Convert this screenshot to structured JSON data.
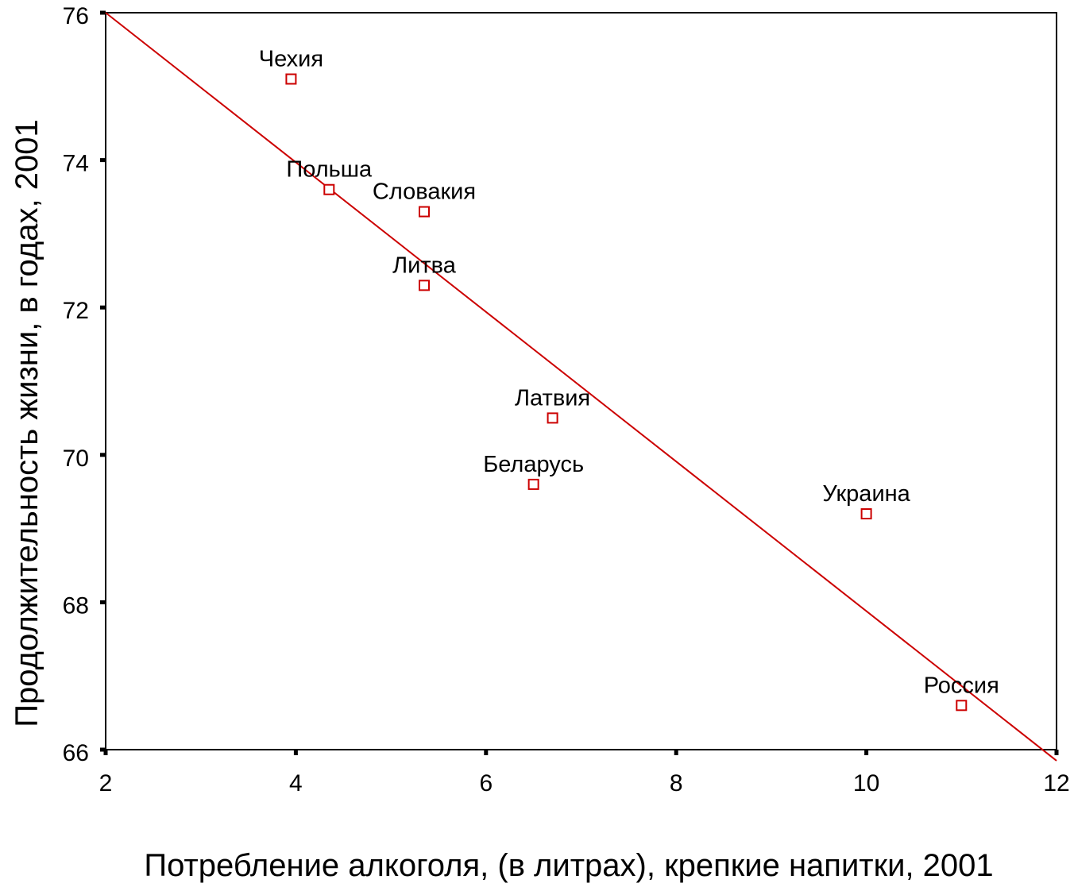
{
  "chart_data": {
    "type": "scatter",
    "title": "",
    "xlabel": "Потребление алкоголя, (в литрах), крепкие напитки, 2001",
    "ylabel": "Продолжительность жизни, в годах, 2001",
    "xlim": [
      2,
      12
    ],
    "ylim": [
      66,
      76
    ],
    "xticks": [
      2,
      4,
      6,
      8,
      10,
      12
    ],
    "yticks": [
      66,
      68,
      70,
      72,
      74,
      76
    ],
    "grid": false,
    "legend": "none",
    "points": [
      {
        "label": "Чехия",
        "x": 3.95,
        "y": 75.1
      },
      {
        "label": "Польша",
        "x": 4.35,
        "y": 73.6
      },
      {
        "label": "Словакия",
        "x": 5.35,
        "y": 73.3
      },
      {
        "label": "Литва",
        "x": 5.35,
        "y": 72.3
      },
      {
        "label": "Латвия",
        "x": 6.7,
        "y": 70.5
      },
      {
        "label": "Беларусь",
        "x": 6.5,
        "y": 69.6
      },
      {
        "label": "Украина",
        "x": 10.0,
        "y": 69.2
      },
      {
        "label": "Россия",
        "x": 11.0,
        "y": 66.6
      }
    ],
    "fit_line": {
      "x": [
        2,
        12
      ],
      "y": [
        76.0,
        65.85
      ]
    },
    "colors": {
      "marker": "#cc0000",
      "fit_line": "#cc0000",
      "axis": "#000000",
      "text": "#000000"
    }
  }
}
